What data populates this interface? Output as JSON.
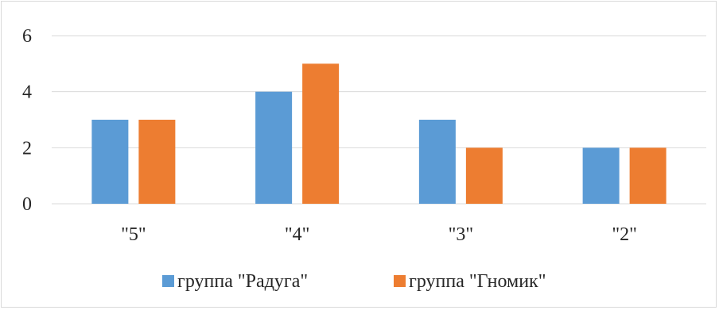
{
  "chart_data": {
    "type": "bar",
    "categories": [
      "\"5\"",
      "\"4\"",
      "\"3\"",
      "\"2\""
    ],
    "series": [
      {
        "name": "группа \"Радуга\"",
        "values": [
          3,
          4,
          3,
          2
        ],
        "color": "#5b9bd5"
      },
      {
        "name": "группа \"Гномик\"",
        "values": [
          3,
          5,
          2,
          2
        ],
        "color": "#ed7d31"
      }
    ],
    "ylim": [
      0,
      6
    ],
    "yticks": [
      0,
      2,
      4,
      6
    ],
    "grid": true,
    "legend_position": "bottom",
    "gridline_color": "#d9d9d9"
  }
}
